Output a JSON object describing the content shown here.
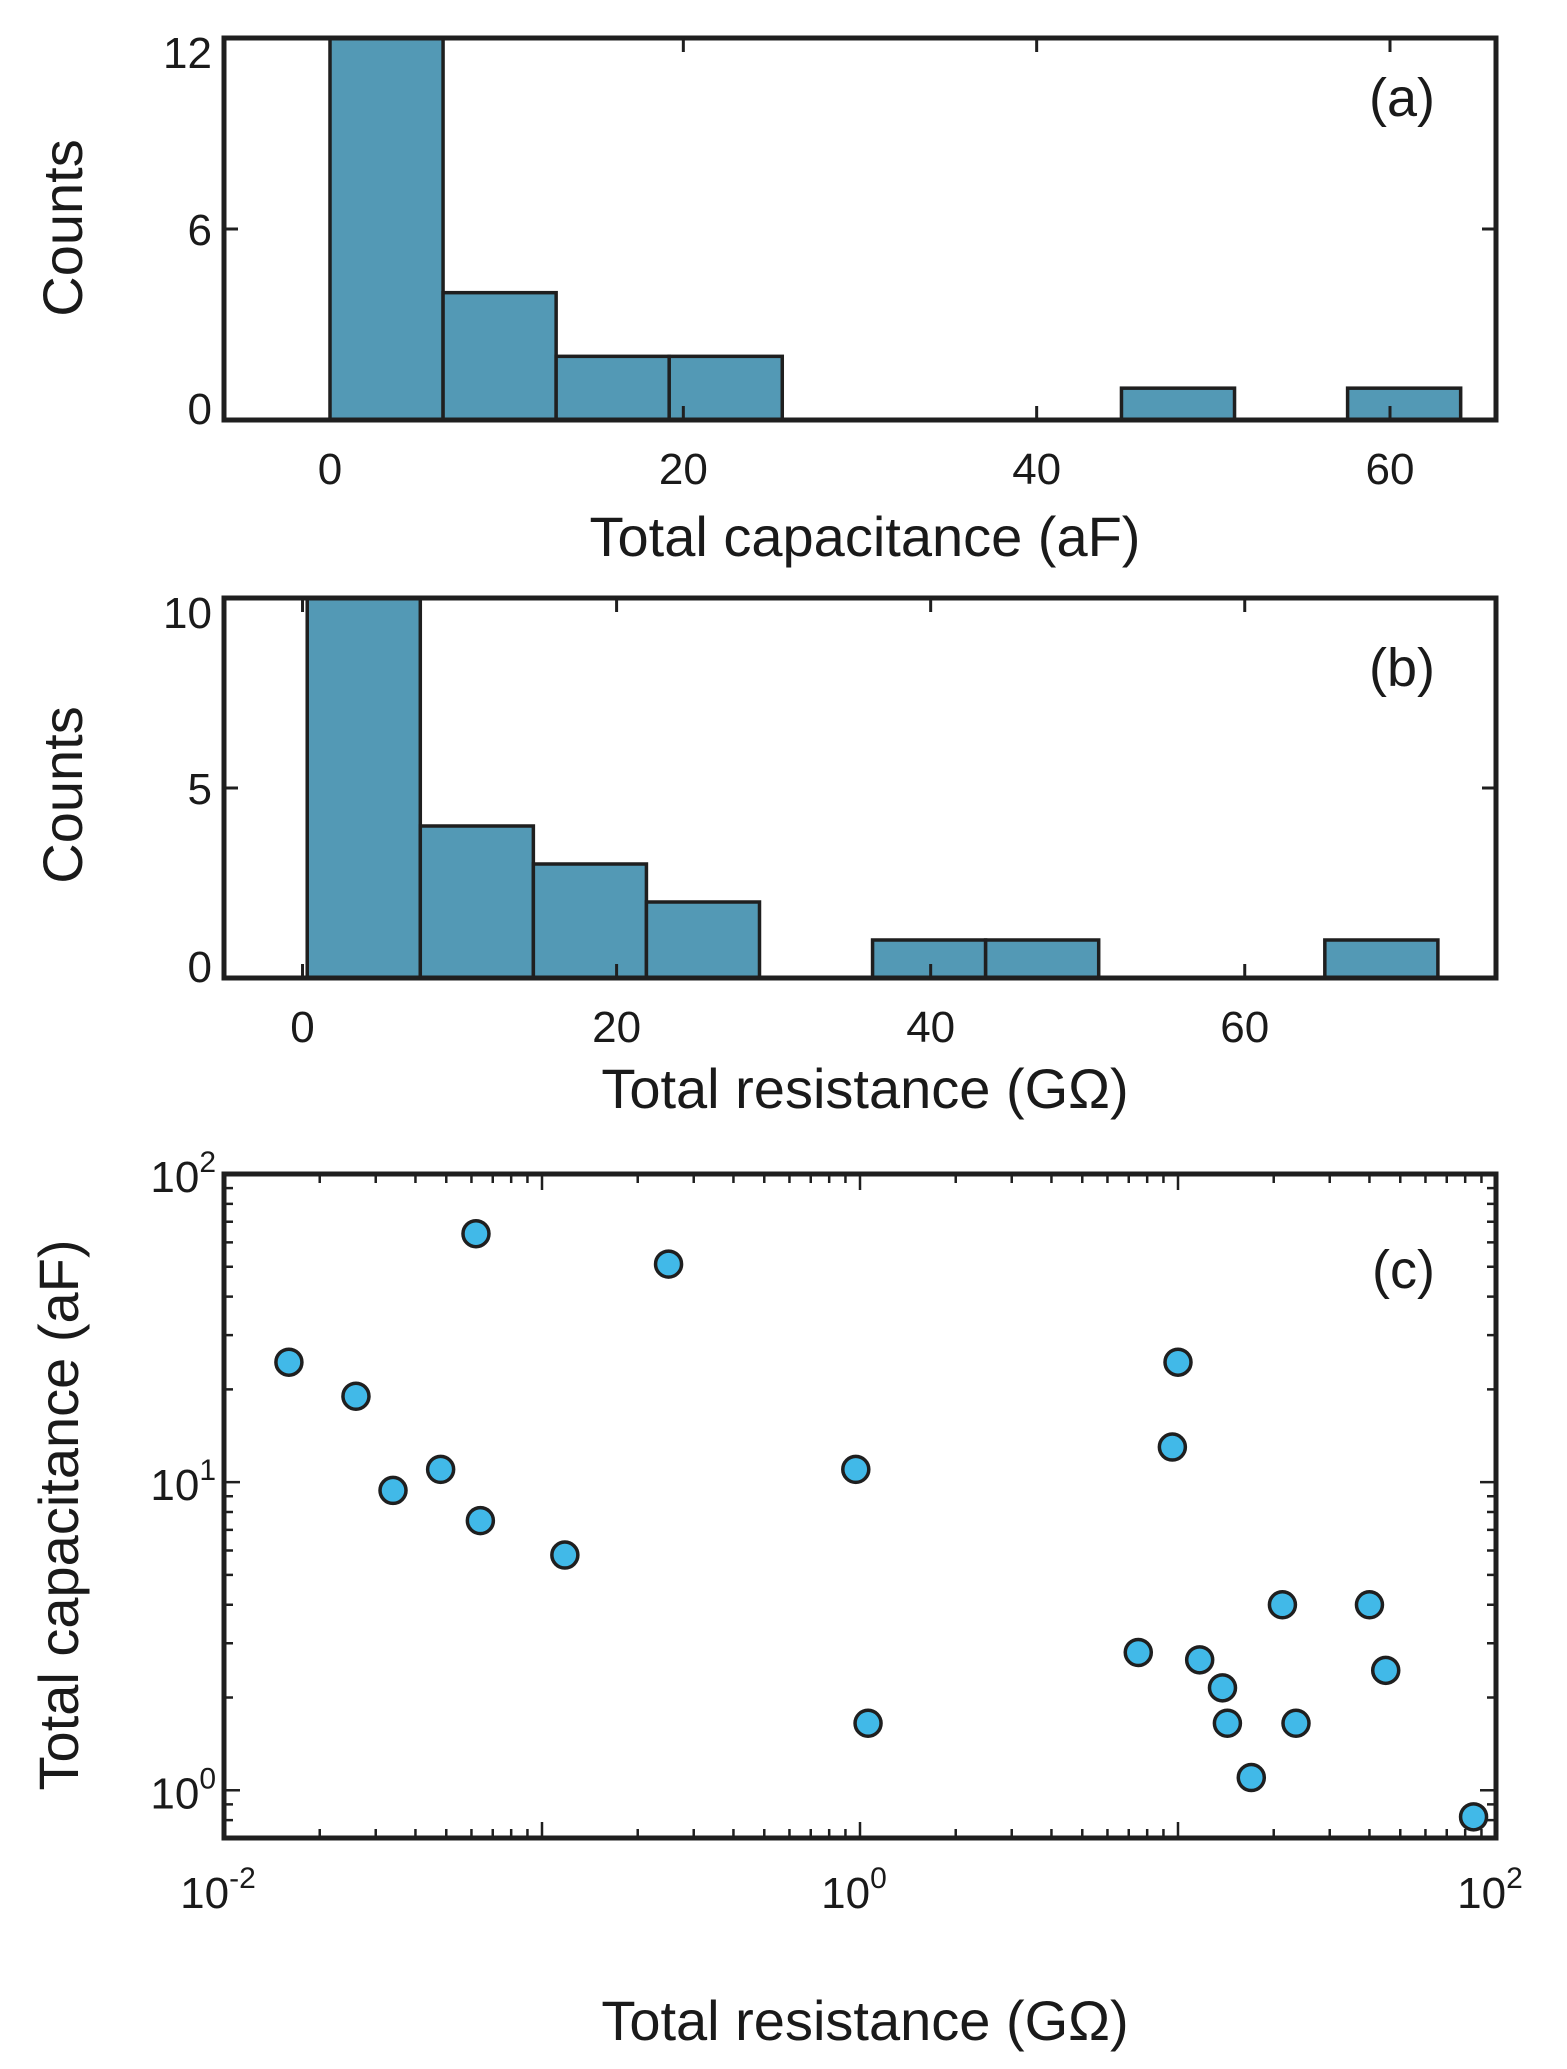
{
  "chart_data": [
    {
      "type": "bar",
      "panel_label": "(a)",
      "xlabel": "Total capacitance (aF)",
      "ylabel": "Counts",
      "xlim": [
        -6,
        66
      ],
      "ylim": [
        0,
        12
      ],
      "xticks": [
        0,
        20,
        40,
        60
      ],
      "yticks": [
        0,
        6,
        12
      ],
      "bin_width": 6.4,
      "bin_starts": [
        0,
        6.4,
        12.8,
        19.2,
        44.8,
        57.6
      ],
      "values": [
        12,
        4,
        2,
        2,
        1,
        1
      ],
      "bar_color": "#5399b5",
      "edge_color": "#1f1f1f"
    },
    {
      "type": "bar",
      "panel_label": "(b)",
      "xlabel": "Total resistance (GΩ)",
      "ylabel": "Counts",
      "xlim": [
        -5,
        76
      ],
      "ylim": [
        0,
        10
      ],
      "xticks": [
        0,
        20,
        40,
        60
      ],
      "yticks": [
        0,
        5,
        10
      ],
      "bin_width": 7.2,
      "bin_starts": [
        0.3,
        7.5,
        14.7,
        21.9,
        36.3,
        43.5,
        65.1
      ],
      "values": [
        10,
        4,
        3,
        2,
        1,
        1,
        1
      ],
      "bar_color": "#5399b5",
      "edge_color": "#1f1f1f"
    },
    {
      "type": "scatter",
      "panel_label": "(c)",
      "xlabel": "Total resistance (GΩ)",
      "ylabel": "Total capacitance (aF)",
      "xscale": "log",
      "yscale": "log",
      "xlim": [
        0.01,
        100
      ],
      "ylim": [
        0.7,
        100
      ],
      "xticks": [
        {
          "base": "10",
          "exp": "-2"
        },
        {
          "base": "10",
          "exp": "0"
        },
        {
          "base": "10",
          "exp": "2"
        }
      ],
      "yticks": [
        {
          "base": "10",
          "exp": "0"
        },
        {
          "base": "10",
          "exp": "1"
        },
        {
          "base": "10",
          "exp": "2"
        }
      ],
      "x": [
        0.016,
        0.026,
        0.034,
        0.048,
        0.062,
        0.064,
        0.118,
        0.25,
        0.97,
        1.06,
        7.5,
        9.6,
        10.0,
        11.7,
        13.8,
        14.3,
        17.0,
        21.3,
        23.5,
        40.0,
        45.0,
        85.0
      ],
      "y": [
        24.5,
        19.0,
        9.4,
        11.0,
        64.0,
        7.5,
        5.8,
        51.0,
        11.0,
        1.65,
        2.8,
        13.0,
        24.5,
        2.65,
        2.15,
        1.65,
        1.1,
        4.0,
        1.65,
        4.0,
        2.45,
        0.82
      ],
      "marker_color": "#41b9e8",
      "edge_color": "#1f1f1f"
    }
  ]
}
